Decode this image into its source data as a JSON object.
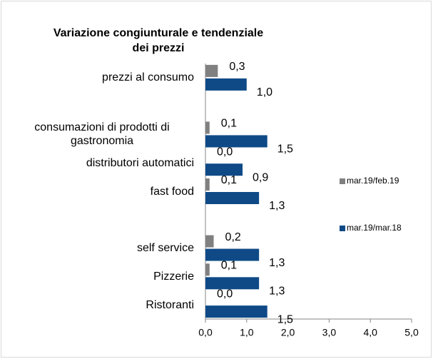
{
  "chart_data": {
    "type": "hbar",
    "title": "Variazione congiunturale e tendenziale dei prezzi",
    "categories": [
      "prezzi al consumo",
      null,
      "consumazioni di prodotti di gastronomia",
      "distributori automatici",
      "fast food",
      null,
      "self service",
      "Pizzerie",
      "Ristoranti"
    ],
    "series": [
      {
        "name": "mar.19/feb.19",
        "color": "#808080",
        "values": [
          0.3,
          null,
          0.1,
          0.0,
          0.1,
          null,
          0.2,
          0.1,
          0.0
        ],
        "value_labels": [
          "0,3",
          null,
          "0,1",
          "0,0",
          "0,1",
          null,
          "0,2",
          "0,1",
          "0,0"
        ]
      },
      {
        "name": "mar.19/mar.18",
        "color": "#0f4a87",
        "values": [
          1.0,
          null,
          1.5,
          0.9,
          1.3,
          null,
          1.3,
          1.3,
          1.5
        ],
        "value_labels": [
          "1,0",
          null,
          "1,5",
          "0,9",
          "1,3",
          null,
          "1,3",
          "1,3",
          "1,5"
        ]
      }
    ],
    "xlim": [
      0,
      5
    ],
    "xticks": [
      {
        "value": 0,
        "label": "0,0"
      },
      {
        "value": 1,
        "label": "1,0"
      },
      {
        "value": 2,
        "label": "2,0"
      },
      {
        "value": 3,
        "label": "3,0"
      },
      {
        "value": 4,
        "label": "4,0"
      },
      {
        "value": 5,
        "label": "5,0"
      }
    ],
    "grid": false,
    "legend": "right"
  }
}
